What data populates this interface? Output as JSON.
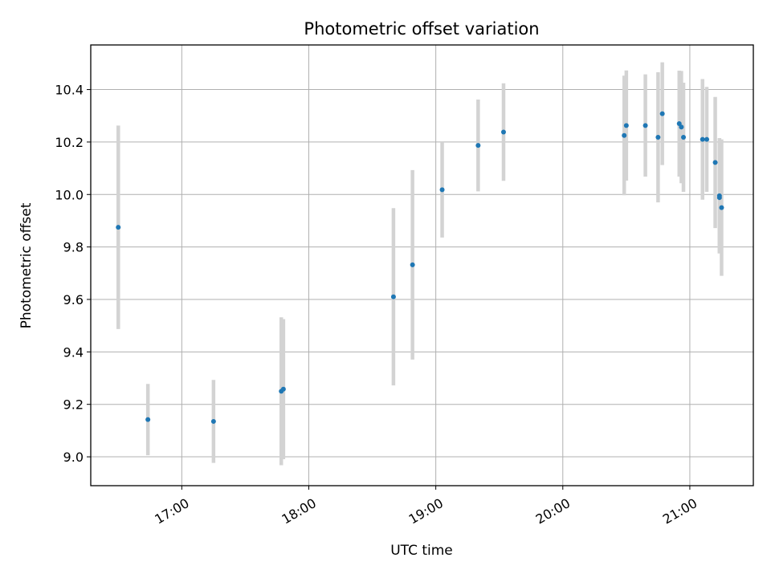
{
  "chart_data": {
    "type": "scatter",
    "title": "Photometric offset variation",
    "xlabel": "UTC time",
    "ylabel": "Photometric offset",
    "x_ticks": [
      "17:00",
      "18:00",
      "19:00",
      "20:00",
      "21:00"
    ],
    "y_ticks": [
      "9.0",
      "9.2",
      "9.4",
      "9.6",
      "9.8",
      "10.0",
      "10.2",
      "10.4"
    ],
    "xlim": [
      "16:17",
      "21:30"
    ],
    "ylim": [
      8.89,
      10.57
    ],
    "grid": true,
    "point_color": "#1f77b4",
    "errorbar_color": "#d3d3d3",
    "points": [
      {
        "time": "16:30",
        "y": 9.875,
        "err": 0.388
      },
      {
        "time": "16:44",
        "y": 9.142,
        "err": 0.136
      },
      {
        "time": "17:15",
        "y": 9.135,
        "err": 0.158
      },
      {
        "time": "17:47",
        "y": 9.25,
        "err": 0.282
      },
      {
        "time": "17:48",
        "y": 9.258,
        "err": 0.267
      },
      {
        "time": "18:40",
        "y": 9.61,
        "err": 0.338
      },
      {
        "time": "18:49",
        "y": 9.732,
        "err": 0.361
      },
      {
        "time": "19:03",
        "y": 10.018,
        "err": 0.182
      },
      {
        "time": "19:20",
        "y": 10.187,
        "err": 0.175
      },
      {
        "time": "19:32",
        "y": 10.238,
        "err": 0.186
      },
      {
        "time": "20:29",
        "y": 10.225,
        "err": 0.228
      },
      {
        "time": "20:30",
        "y": 10.263,
        "err": 0.21
      },
      {
        "time": "20:39",
        "y": 10.263,
        "err": 0.195
      },
      {
        "time": "20:45",
        "y": 10.218,
        "err": 0.248
      },
      {
        "time": "20:47",
        "y": 10.308,
        "err": 0.196
      },
      {
        "time": "20:55",
        "y": 10.27,
        "err": 0.202
      },
      {
        "time": "20:56",
        "y": 10.257,
        "err": 0.214
      },
      {
        "time": "20:57",
        "y": 10.218,
        "err": 0.208
      },
      {
        "time": "21:06",
        "y": 10.21,
        "err": 0.23
      },
      {
        "time": "21:08",
        "y": 10.21,
        "err": 0.2
      },
      {
        "time": "21:12",
        "y": 10.122,
        "err": 0.25
      },
      {
        "time": "21:14",
        "y": 9.995,
        "err": 0.22
      },
      {
        "time": "21:14",
        "y": 9.988,
        "err": 0.21
      },
      {
        "time": "21:15",
        "y": 9.95,
        "err": 0.26
      }
    ]
  }
}
